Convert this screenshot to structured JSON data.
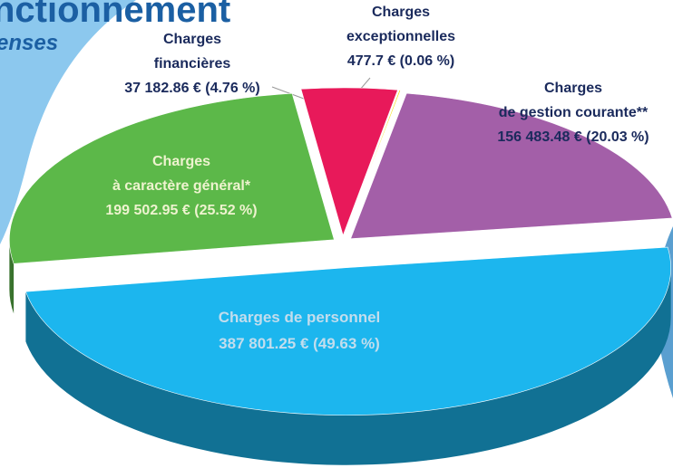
{
  "chart_data": {
    "type": "pie",
    "title": "nctionnement",
    "subtitle": "enses",
    "categories": [
      [
        "Charges de personnel"
      ],
      [
        "Charges",
        "à caractère général*"
      ],
      [
        "Charges",
        "financières"
      ],
      [
        "Charges",
        "exceptionnelles"
      ],
      [
        "Charges",
        "de gestion courante**"
      ]
    ],
    "values": [
      387801.25,
      199502.95,
      37182.86,
      477.7,
      156483.48
    ],
    "value_labels": [
      "387 801.25 €  (49.63 %)",
      "199 502.95 € (25.52 %)",
      "37 182.86 €  (4.76 %)",
      "477.7 €  (0.06 %)",
      "156 483.48 €  (20.03 %)"
    ],
    "colors": [
      "#1cb6ee",
      "#5cb849",
      "#e8195a",
      "#f2e000",
      "#a35fa8"
    ]
  }
}
